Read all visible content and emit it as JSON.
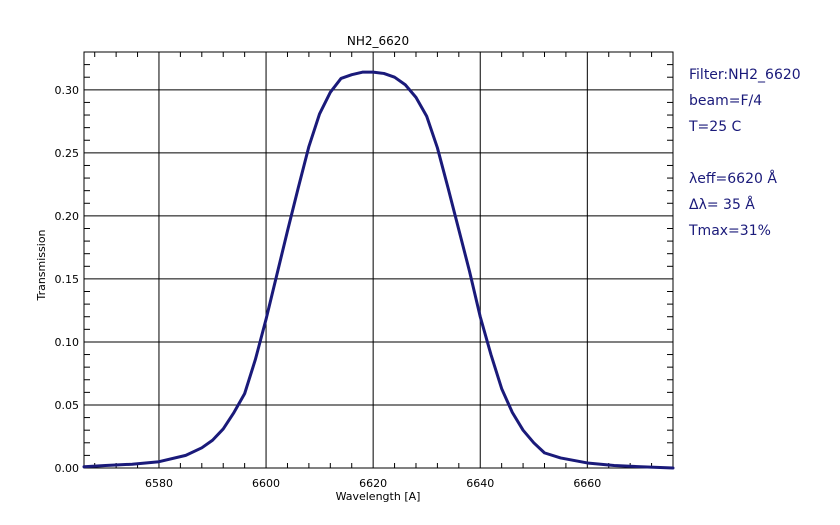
{
  "chart_data": {
    "type": "line",
    "title": "NH2_6620",
    "xlabel": "Wavelength [A]",
    "ylabel": "Transmission",
    "xlim": [
      6566,
      6676
    ],
    "ylim": [
      0,
      0.33
    ],
    "xticks": [
      6580,
      6600,
      6620,
      6640,
      6660
    ],
    "yticks": [
      0.0,
      0.05,
      0.1,
      0.15,
      0.2,
      0.25,
      0.3
    ],
    "ytick_labels": [
      "0.00",
      "0.05",
      "0.10",
      "0.15",
      "0.20",
      "0.25",
      "0.30"
    ],
    "grid": true,
    "line_color": "#1a1a7a",
    "series": [
      {
        "x": [
          6566,
          6570,
          6575,
          6580,
          6585,
          6588,
          6590,
          6592,
          6594,
          6596,
          6598,
          6600,
          6602,
          6604,
          6606,
          6608,
          6610,
          6612,
          6614,
          6616,
          6618,
          6620,
          6622,
          6624,
          6626,
          6628,
          6630,
          6632,
          6634,
          6636,
          6638,
          6640,
          6642,
          6644,
          6646,
          6648,
          6650,
          6652,
          6655,
          6660,
          6665,
          6670,
          6676
        ],
        "values": [
          0.001,
          0.002,
          0.003,
          0.005,
          0.01,
          0.016,
          0.022,
          0.031,
          0.044,
          0.059,
          0.086,
          0.118,
          0.153,
          0.188,
          0.222,
          0.255,
          0.281,
          0.298,
          0.309,
          0.312,
          0.314,
          0.314,
          0.313,
          0.31,
          0.304,
          0.294,
          0.279,
          0.254,
          0.222,
          0.189,
          0.156,
          0.12,
          0.09,
          0.063,
          0.044,
          0.03,
          0.02,
          0.012,
          0.008,
          0.004,
          0.002,
          0.001,
          0.0
        ]
      }
    ]
  },
  "info": {
    "filter": "Filter:NH2_6620",
    "beam": "beam=F/4",
    "temp": "T=25 C",
    "leff": "λeff=6620 Å",
    "dl": "Δλ= 35 Å",
    "tmax": "Tmax=31%"
  }
}
